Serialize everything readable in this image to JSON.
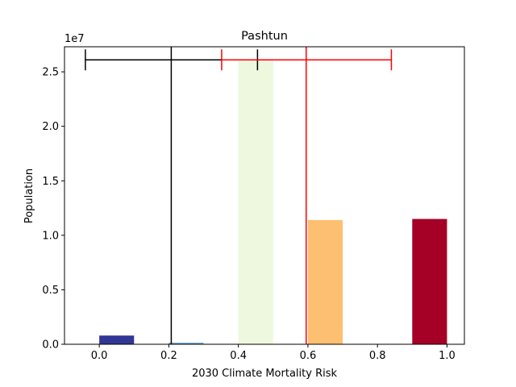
{
  "chart_data": {
    "type": "bar",
    "title": "Pashtun",
    "xlabel": "2030 Climate Mortality Risk",
    "ylabel": "Population",
    "y_multiplier_label": "1e7",
    "xlim": [
      -0.1,
      1.05
    ],
    "ylim": [
      0,
      27300000
    ],
    "x_ticks": [
      0.0,
      0.2,
      0.4,
      0.6,
      0.8,
      1.0
    ],
    "x_tick_labels": [
      "0.0",
      "0.2",
      "0.4",
      "0.6",
      "0.8",
      "1.0"
    ],
    "y_ticks": [
      0,
      5000000,
      10000000,
      15000000,
      20000000,
      25000000
    ],
    "y_tick_labels": [
      "0.0",
      "0.5",
      "1.0",
      "1.5",
      "2.0",
      "2.5"
    ],
    "grid": false,
    "bars": [
      {
        "x_start": 0.0,
        "x_end": 0.1,
        "value": 800000,
        "color": "#313695"
      },
      {
        "x_start": 0.2,
        "x_end": 0.3,
        "value": 150000,
        "color": "#74add1"
      },
      {
        "x_start": 0.4,
        "x_end": 0.5,
        "value": 26100000,
        "color": "#edf8df"
      },
      {
        "x_start": 0.6,
        "x_end": 0.7,
        "value": 11400000,
        "color": "#fdbf71"
      },
      {
        "x_start": 0.9,
        "x_end": 1.0,
        "value": 11500000,
        "color": "#a50026"
      }
    ],
    "reference_lines": [
      {
        "x": 0.207,
        "color": "#000000",
        "error_low": -0.04,
        "error_high": 0.455,
        "y": 26100000
      },
      {
        "x": 0.595,
        "color": "#ff0000",
        "error_low": 0.352,
        "error_high": 0.84,
        "y": 26100000
      }
    ]
  }
}
